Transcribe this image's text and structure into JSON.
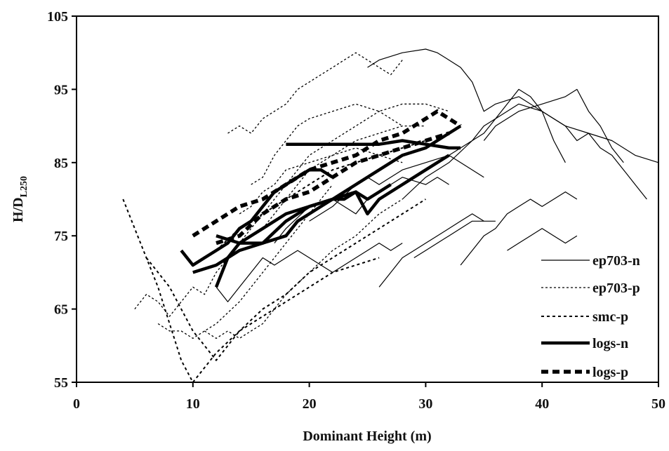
{
  "chart_data": {
    "type": "line",
    "xlabel": "Dominant Height (m)",
    "ylabel_main": "H/D",
    "ylabel_sub": "L250",
    "xlim": [
      0,
      50
    ],
    "ylim": [
      55,
      105
    ],
    "x_ticks": [
      "0",
      "10",
      "20",
      "30",
      "40",
      "50"
    ],
    "y_ticks": [
      "55",
      "65",
      "75",
      "85",
      "95",
      "105"
    ],
    "grid": false,
    "legend_position": "bottom-right",
    "colors": {
      "line": "#000000",
      "background": "#ffffff"
    },
    "legend": [
      {
        "label": "ep703-n",
        "style": "thin-solid"
      },
      {
        "label": "ep703-p",
        "style": "thin-dotted"
      },
      {
        "label": "smc-p",
        "style": "dashed"
      },
      {
        "label": "logs-n",
        "style": "thick-solid"
      },
      {
        "label": "logs-p",
        "style": "thick-dashed"
      }
    ],
    "series": [
      {
        "style": "thin-solid",
        "x": [
          25,
          26,
          28,
          30,
          31,
          32,
          33,
          34,
          35,
          36,
          38,
          40,
          42,
          44,
          46,
          48,
          50
        ],
        "y": [
          98,
          99,
          100,
          100.5,
          100,
          99,
          98,
          96,
          92,
          93,
          94,
          92,
          90,
          89,
          88,
          86,
          85
        ]
      },
      {
        "style": "thin-solid",
        "x": [
          32,
          34,
          35,
          36,
          37,
          38,
          39,
          40,
          41,
          42,
          43,
          44,
          45,
          46,
          47,
          48,
          49
        ],
        "y": [
          86,
          88,
          89,
          91,
          93,
          95,
          94,
          92,
          91,
          90,
          88,
          89,
          87,
          86,
          84,
          82,
          80
        ]
      },
      {
        "style": "thin-solid",
        "x": [
          28,
          30,
          32,
          34,
          35,
          36,
          38,
          40,
          41,
          42
        ],
        "y": [
          80,
          83,
          85,
          88,
          90,
          91,
          93,
          92,
          88,
          85
        ]
      },
      {
        "style": "thin-solid",
        "x": [
          35,
          36,
          38,
          40,
          42,
          43,
          44,
          45,
          46,
          47
        ],
        "y": [
          88,
          90,
          92,
          93,
          94,
          95,
          92,
          90,
          87,
          85
        ]
      },
      {
        "style": "thin-solid",
        "x": [
          33,
          34,
          35,
          36,
          37,
          38,
          39,
          40,
          41,
          42,
          43
        ],
        "y": [
          71,
          73,
          75,
          76,
          78,
          79,
          80,
          79,
          80,
          81,
          80
        ]
      },
      {
        "style": "thin-solid",
        "x": [
          26,
          27,
          28,
          29,
          30,
          31,
          32,
          33,
          34,
          35,
          36
        ],
        "y": [
          68,
          70,
          72,
          73,
          74,
          75,
          76,
          77,
          78,
          77,
          77
        ]
      },
      {
        "style": "thin-solid",
        "x": [
          29,
          30,
          31,
          32,
          33,
          34,
          35
        ],
        "y": [
          72,
          73,
          74,
          75,
          76,
          77,
          77
        ]
      },
      {
        "style": "thin-solid",
        "x": [
          37,
          38,
          39,
          40,
          41,
          42,
          43
        ],
        "y": [
          73,
          74,
          75,
          76,
          75,
          74,
          75
        ]
      },
      {
        "style": "thin-solid",
        "x": [
          12,
          13,
          14,
          15,
          16,
          17,
          18,
          19,
          20,
          21,
          22,
          23,
          24,
          25,
          26,
          27,
          28
        ],
        "y": [
          68,
          66,
          68,
          70,
          72,
          71,
          72,
          73,
          72,
          71,
          70,
          71,
          72,
          73,
          74,
          73,
          74
        ]
      },
      {
        "style": "thin-solid",
        "x": [
          17,
          18,
          20,
          22,
          23,
          24,
          25,
          26,
          27,
          28,
          30,
          31,
          32
        ],
        "y": [
          74,
          76,
          79,
          80,
          79,
          78,
          80,
          81,
          82,
          83,
          82,
          83,
          82
        ]
      },
      {
        "style": "thin-solid",
        "x": [
          20,
          22,
          24,
          25,
          26,
          28,
          30,
          32,
          33,
          34,
          35
        ],
        "y": [
          77,
          79,
          82,
          83,
          82,
          84,
          85,
          86,
          85,
          84,
          83
        ]
      },
      {
        "style": "thin-dotted",
        "x": [
          5,
          6,
          7,
          8,
          9,
          10,
          11,
          12,
          14,
          16,
          18,
          20,
          22,
          24,
          26,
          28
        ],
        "y": [
          65,
          67,
          66,
          64,
          66,
          68,
          67,
          70,
          74,
          78,
          82,
          86,
          88,
          90,
          92,
          90
        ]
      },
      {
        "style": "thin-dotted",
        "x": [
          7,
          8,
          9,
          10,
          11,
          12,
          14,
          16,
          18,
          20,
          22
        ],
        "y": [
          63,
          62,
          62,
          61,
          62,
          63,
          66,
          70,
          74,
          78,
          82
        ]
      },
      {
        "style": "thin-dotted",
        "x": [
          11,
          12,
          13,
          14,
          15,
          16,
          18,
          20,
          22,
          24,
          26,
          28
        ],
        "y": [
          62,
          61,
          62,
          61,
          62,
          63,
          67,
          70,
          73,
          75,
          78,
          80
        ]
      },
      {
        "style": "thin-dotted",
        "x": [
          13,
          14,
          15,
          16,
          17,
          18,
          19,
          20,
          21,
          22,
          23,
          24,
          25,
          26,
          27,
          28
        ],
        "y": [
          89,
          90,
          89,
          91,
          92,
          93,
          95,
          96,
          97,
          98,
          99,
          100,
          99,
          98,
          97,
          99
        ]
      },
      {
        "style": "thin-dotted",
        "x": [
          15,
          16,
          17,
          18,
          19,
          20,
          22,
          24,
          26,
          28,
          30,
          32
        ],
        "y": [
          82,
          83,
          86,
          88,
          90,
          91,
          92,
          93,
          92,
          93,
          93,
          92
        ]
      },
      {
        "style": "thin-dotted",
        "x": [
          16,
          17,
          18,
          19,
          20,
          21,
          22,
          24,
          26,
          28,
          30
        ],
        "y": [
          76,
          78,
          80,
          82,
          84,
          85,
          86,
          88,
          89,
          90,
          90
        ]
      },
      {
        "style": "thin-dotted",
        "x": [
          14,
          15,
          16,
          17,
          18,
          20,
          22,
          24,
          26,
          28
        ],
        "y": [
          78,
          79,
          81,
          82,
          84,
          85,
          86,
          87,
          86,
          85
        ]
      },
      {
        "style": "dashed",
        "x": [
          4,
          5,
          6,
          7,
          8,
          9,
          10
        ],
        "y": [
          80,
          76,
          72,
          68,
          63,
          58,
          55
        ]
      },
      {
        "style": "dashed",
        "x": [
          6,
          7,
          8,
          9,
          10,
          11,
          12,
          13,
          14,
          16,
          18,
          20,
          22,
          24,
          26
        ],
        "y": [
          72,
          70,
          68,
          65,
          62,
          60,
          58,
          60,
          62,
          64,
          66,
          68,
          70,
          71,
          72
        ]
      },
      {
        "style": "dashed",
        "x": [
          10,
          11,
          12,
          14,
          16,
          18,
          20,
          22,
          24,
          26,
          28,
          30
        ],
        "y": [
          55,
          57,
          59,
          62,
          65,
          67,
          70,
          72,
          74,
          76,
          78,
          80
        ]
      },
      {
        "style": "dashed",
        "x": [
          12,
          14,
          16,
          18,
          20,
          22,
          24,
          26,
          28,
          30
        ],
        "y": [
          73,
          76,
          78,
          80,
          82,
          84,
          85,
          86,
          87,
          88
        ]
      },
      {
        "style": "thick-solid",
        "x": [
          9,
          10,
          11,
          12,
          13,
          14,
          15,
          16,
          17,
          18,
          19,
          20,
          21,
          22
        ],
        "y": [
          73,
          71,
          72,
          73,
          74,
          76,
          77,
          79,
          81,
          82,
          83,
          84,
          84,
          83
        ]
      },
      {
        "style": "thick-solid",
        "x": [
          10,
          12,
          14,
          16,
          18,
          20,
          22,
          24,
          26,
          28,
          30,
          32,
          33
        ],
        "y": [
          70,
          71,
          73,
          74,
          77,
          79,
          80,
          82,
          84,
          86,
          87,
          89,
          90
        ]
      },
      {
        "style": "thick-solid",
        "x": [
          12,
          13,
          14,
          16,
          18,
          19,
          20,
          21,
          22,
          23,
          24,
          25,
          26,
          27
        ],
        "y": [
          68,
          72,
          74,
          74,
          75,
          77,
          78,
          79,
          80,
          80,
          81,
          80,
          81,
          82
        ]
      },
      {
        "style": "thick-solid",
        "x": [
          18,
          20,
          22,
          24,
          26,
          28,
          30,
          32,
          33
        ],
        "y": [
          87.5,
          87.5,
          87.5,
          87.5,
          87.5,
          88,
          87.5,
          87,
          87
        ]
      },
      {
        "style": "thick-solid",
        "x": [
          12,
          14,
          16,
          18,
          20,
          22,
          24,
          25,
          26,
          28,
          30,
          32
        ],
        "y": [
          75,
          74,
          76,
          78,
          79,
          80,
          81,
          78,
          80,
          82,
          84,
          86
        ]
      },
      {
        "style": "thick-dashed",
        "x": [
          10,
          12,
          14,
          16,
          18,
          20,
          22,
          24,
          26,
          28,
          30,
          31,
          32,
          33
        ],
        "y": [
          75,
          77,
          79,
          80,
          82,
          84,
          85,
          86,
          88,
          89,
          91,
          92,
          91,
          90
        ]
      },
      {
        "style": "thick-dashed",
        "x": [
          12,
          14,
          16,
          18,
          20,
          22,
          24,
          26,
          28,
          30,
          32
        ],
        "y": [
          74,
          75,
          78,
          80,
          81,
          83,
          85,
          86,
          87,
          88,
          89
        ]
      }
    ]
  }
}
